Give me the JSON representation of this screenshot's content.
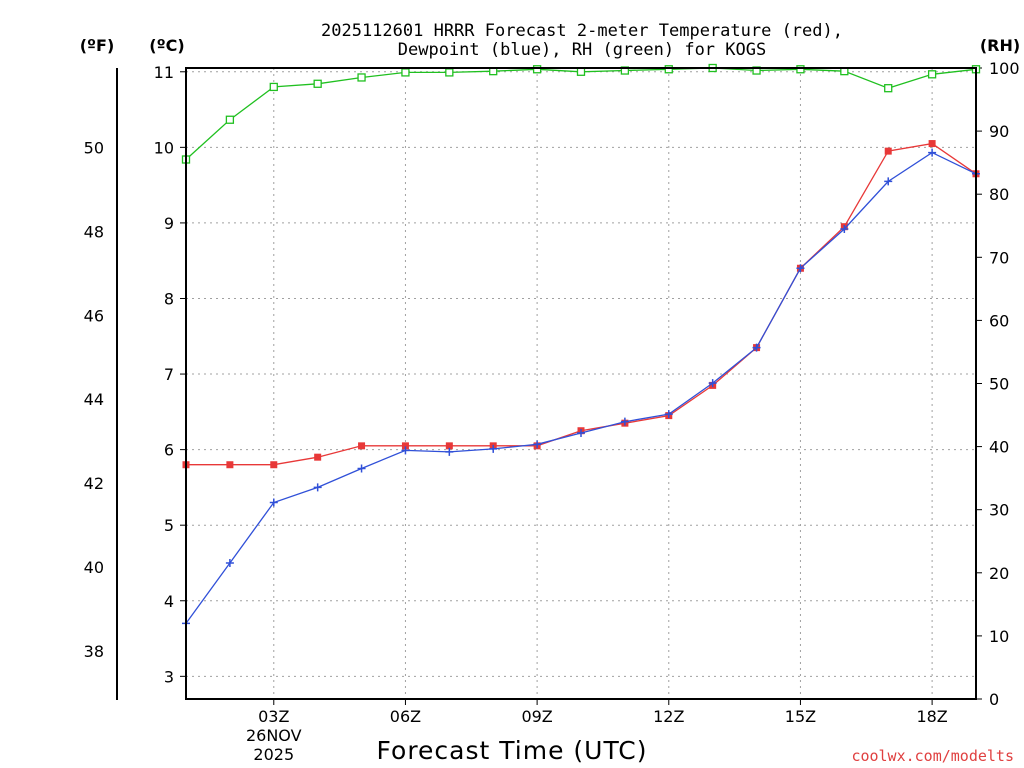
{
  "page": {
    "title_line1": "2025112601 HRRR Forecast 2-meter Temperature (red),",
    "title_line2": "Dewpoint (blue), RH (green) for KOGS",
    "credit": "coolwx.com/modelts",
    "credit_color": "#e04040"
  },
  "chart_data": {
    "type": "line",
    "title": "2025112601 HRRR Forecast 2-meter Temperature (red), Dewpoint (blue), RH (green) for KOGS",
    "xlabel": "Forecast Time (UTC)",
    "x_hours": [
      1,
      2,
      3,
      4,
      5,
      6,
      7,
      8,
      9,
      10,
      11,
      12,
      13,
      14,
      15,
      16,
      17,
      18,
      19
    ],
    "xlim": [
      1,
      19
    ],
    "x_ticks": [
      {
        "hour": 3,
        "label": "03Z",
        "sub1": "26NOV",
        "sub2": "2025"
      },
      {
        "hour": 6,
        "label": "06Z"
      },
      {
        "hour": 9,
        "label": "09Z"
      },
      {
        "hour": 12,
        "label": "12Z"
      },
      {
        "hour": 15,
        "label": "15Z"
      },
      {
        "hour": 18,
        "label": "18Z"
      }
    ],
    "axes": {
      "celsius": {
        "label": "(ºC)",
        "range": [
          2.7,
          11.05
        ],
        "ticks": [
          "3",
          "4",
          "5",
          "6",
          "7",
          "8",
          "9",
          "10",
          "11"
        ]
      },
      "fahrenheit": {
        "label": "(ºF)",
        "ticks": [
          "38",
          "40",
          "42",
          "44",
          "46",
          "48",
          "50"
        ]
      },
      "rh": {
        "label": "(RH)",
        "range": [
          0,
          100
        ],
        "ticks": [
          "0",
          "10",
          "20",
          "30",
          "40",
          "50",
          "60",
          "70",
          "80",
          "90",
          "100"
        ]
      }
    },
    "series": [
      {
        "name": "Temperature",
        "unit": "C",
        "color": "#e83838",
        "marker": "filled-square",
        "values": [
          5.8,
          5.8,
          5.8,
          5.9,
          6.05,
          6.05,
          6.05,
          6.05,
          6.05,
          6.25,
          6.35,
          6.45,
          6.85,
          7.35,
          8.4,
          8.95,
          9.95,
          10.05,
          9.65
        ]
      },
      {
        "name": "Dewpoint",
        "unit": "C",
        "color": "#3050d8",
        "marker": "plus",
        "values": [
          3.7,
          4.5,
          5.3,
          5.5,
          5.75,
          5.99,
          5.97,
          6.01,
          6.07,
          6.22,
          6.37,
          6.47,
          6.88,
          7.35,
          8.4,
          8.92,
          9.55,
          9.93,
          9.65
        ]
      },
      {
        "name": "RH",
        "unit": "%",
        "color": "#20c020",
        "marker": "open-square",
        "values": [
          85.5,
          91.8,
          97.0,
          97.5,
          98.5,
          99.3,
          99.3,
          99.5,
          99.8,
          99.4,
          99.6,
          99.8,
          100.0,
          99.6,
          99.8,
          99.5,
          96.8,
          99.0,
          99.8
        ]
      }
    ]
  }
}
